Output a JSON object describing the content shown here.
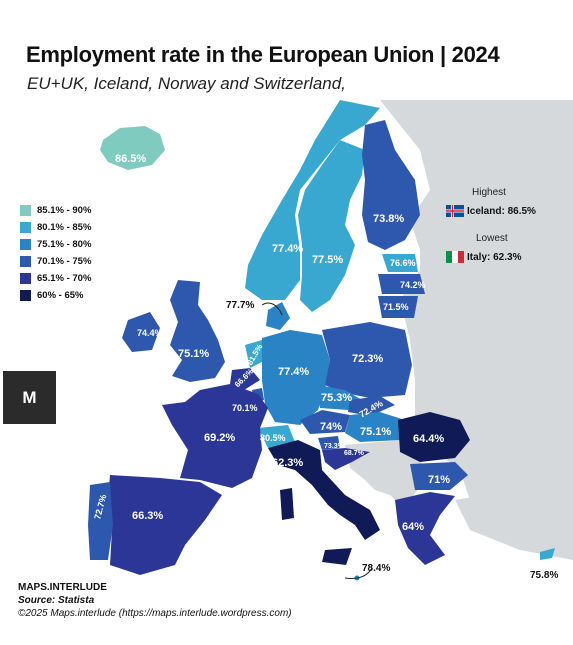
{
  "title": "Employment rate in the European Union | 2024",
  "subtitle": "EU+UK, Iceland, Norway and Switzerland,",
  "legend": [
    {
      "label": "85.1% - 90%",
      "color": "#7fcbc0"
    },
    {
      "label": "80.1% - 85%",
      "color": "#39a8d1"
    },
    {
      "label": "75.1% - 80%",
      "color": "#2a83c4"
    },
    {
      "label": "70.1% - 75%",
      "color": "#2d58ad"
    },
    {
      "label": "65.1% - 70%",
      "color": "#2b3697"
    },
    {
      "label": "60% - 65%",
      "color": "#0f1a56"
    }
  ],
  "highlights": {
    "highest_heading": "Highest",
    "highest_value": "Iceland: 86.5%",
    "lowest_heading": "Lowest",
    "lowest_value": "Italy: 62.3%"
  },
  "map_labels": {
    "iceland": "86.5%",
    "norway": "77.4%",
    "sweden": "77.5%",
    "finland": "73.8%",
    "estonia": "76.6%",
    "latvia": "74.2%",
    "lithuania": "71.5%",
    "denmark": "77.7%",
    "ireland": "74.4%",
    "uk": "75.1%",
    "netherlands": "81.5%",
    "belgium": "66.6%",
    "luxembourg": "70.1%",
    "germany": "77.4%",
    "poland": "72.3%",
    "czechia": "75.3%",
    "slovakia": "72.4%",
    "austria": "74%",
    "hungary": "75.1%",
    "switzerland": "80.5%",
    "slovenia": "73.3%",
    "croatia": "68.7%",
    "france": "69.2%",
    "italy": "62.3%",
    "romania": "64.4%",
    "bulgaria": "71%",
    "greece": "64%",
    "spain": "66.3%",
    "portugal": "72.7%",
    "malta": "78.4%",
    "cyprus": "75.8%"
  },
  "logo_text": "M",
  "footer": {
    "brand": "MAPS.INTERLUDE",
    "source": "Source: Statista",
    "copyright": "©2025 Maps.interlude (https://maps.interlude.wordpress.com)"
  }
}
